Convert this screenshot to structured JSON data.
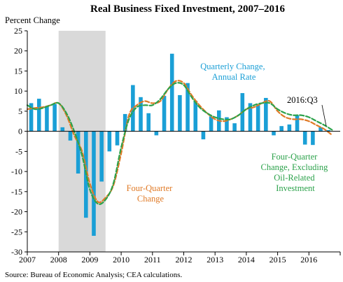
{
  "chart_data": {
    "type": "bar",
    "title": "Real Business Fixed Investment, 2007–2016",
    "ylabel": "Percent Change",
    "ylim": [
      -30,
      25
    ],
    "yticks": [
      -30,
      -25,
      -20,
      -15,
      -10,
      -5,
      0,
      5,
      10,
      15,
      20,
      25
    ],
    "xlim": [
      2007,
      2017
    ],
    "xticks": [
      "2007",
      "2008",
      "2009",
      "2010",
      "2011",
      "2012",
      "2013",
      "2014",
      "2015",
      "2016"
    ],
    "recession": [
      2008.0,
      2009.5
    ],
    "colors": {
      "bars": "#1a9fd6",
      "four_quarter": "#e07a26",
      "excl_oil": "#2ca24b",
      "recession": "#d9d9d9",
      "quarterly_label": "#1a9fd6"
    },
    "series": [
      {
        "name": "Quarterly Change, Annual Rate",
        "type": "bar",
        "x": [
          "2007Q1",
          "2007Q2",
          "2007Q3",
          "2007Q4",
          "2008Q1",
          "2008Q2",
          "2008Q3",
          "2008Q4",
          "2009Q1",
          "2009Q2",
          "2009Q3",
          "2009Q4",
          "2010Q1",
          "2010Q2",
          "2010Q3",
          "2010Q4",
          "2011Q1",
          "2011Q2",
          "2011Q3",
          "2011Q4",
          "2012Q1",
          "2012Q2",
          "2012Q3",
          "2012Q4",
          "2013Q1",
          "2013Q2",
          "2013Q3",
          "2013Q4",
          "2014Q1",
          "2014Q2",
          "2014Q3",
          "2014Q4",
          "2015Q1",
          "2015Q2",
          "2015Q3",
          "2015Q4",
          "2016Q1",
          "2016Q2",
          "2016Q3"
        ],
        "values": [
          7.0,
          8.1,
          6.3,
          6.8,
          1.0,
          -2.3,
          -10.5,
          -21.5,
          -26.0,
          -12.5,
          -5.0,
          -3.5,
          4.3,
          11.5,
          8.5,
          4.5,
          -1.0,
          8.8,
          19.3,
          9.0,
          12.0,
          7.6,
          -2.0,
          3.7,
          5.2,
          3.5,
          2.0,
          9.5,
          7.0,
          6.5,
          8.3,
          -1.0,
          1.3,
          1.7,
          4.0,
          -3.3,
          -3.4,
          1.0,
          0.3
        ]
      },
      {
        "name": "Four-Quarter Change",
        "type": "line",
        "style": "dashed",
        "x": [
          2007.0,
          2007.25,
          2007.5,
          2007.75,
          2008.0,
          2008.25,
          2008.5,
          2008.75,
          2009.0,
          2009.25,
          2009.5,
          2009.75,
          2010.0,
          2010.25,
          2010.5,
          2010.75,
          2011.0,
          2011.25,
          2011.5,
          2011.75,
          2012.0,
          2012.25,
          2012.5,
          2012.75,
          2013.0,
          2013.25,
          2013.5,
          2013.75,
          2014.0,
          2014.25,
          2014.5,
          2014.75,
          2015.0,
          2015.25,
          2015.5,
          2015.75,
          2016.0,
          2016.25,
          2016.5,
          2016.75
        ],
        "values": [
          5.5,
          5.8,
          6.0,
          6.5,
          7.0,
          4.0,
          -1.0,
          -5.0,
          -13.0,
          -17.5,
          -16.5,
          -13.5,
          -5.5,
          4.0,
          6.5,
          7.5,
          7.0,
          7.5,
          10.5,
          12.5,
          12.0,
          9.0,
          6.5,
          4.5,
          3.0,
          2.5,
          3.0,
          4.0,
          5.5,
          6.0,
          7.0,
          7.5,
          5.0,
          3.5,
          3.0,
          3.0,
          2.5,
          1.5,
          0.5,
          -1.0
        ]
      },
      {
        "name": "Four-Quarter Change, Excluding Oil-Related Investment",
        "type": "line",
        "style": "dashed",
        "x": [
          2007.0,
          2007.25,
          2007.5,
          2007.75,
          2008.0,
          2008.25,
          2008.5,
          2008.75,
          2009.0,
          2009.25,
          2009.5,
          2009.75,
          2010.0,
          2010.25,
          2010.5,
          2010.75,
          2011.0,
          2011.25,
          2011.5,
          2011.75,
          2012.0,
          2012.25,
          2012.5,
          2012.75,
          2013.0,
          2013.25,
          2013.5,
          2013.75,
          2014.0,
          2014.25,
          2014.5,
          2014.75,
          2015.0,
          2015.25,
          2015.5,
          2015.75,
          2016.0,
          2016.25,
          2016.5,
          2016.75
        ],
        "values": [
          6.5,
          5.5,
          5.8,
          6.5,
          7.0,
          4.5,
          0.0,
          -6.0,
          -14.5,
          -18.0,
          -17.0,
          -13.0,
          -4.0,
          3.0,
          6.0,
          6.5,
          6.5,
          8.0,
          10.5,
          12.0,
          11.5,
          8.5,
          6.0,
          4.5,
          3.5,
          3.0,
          3.0,
          4.0,
          5.5,
          6.5,
          7.0,
          7.0,
          5.5,
          4.5,
          4.0,
          4.0,
          3.5,
          2.5,
          1.5,
          0.3
        ]
      }
    ],
    "annotations": {
      "quarterly": [
        "Quarterly Change,",
        "Annual Rate"
      ],
      "four_quarter": [
        "Four-Quarter",
        "Change"
      ],
      "excl_oil": [
        "Four-Quarter",
        "Change, Excluding",
        "Oil-Related",
        "Investment"
      ],
      "latest": "2016:Q3"
    },
    "source": "Source: Bureau of Economic Analysis; CEA calculations."
  }
}
